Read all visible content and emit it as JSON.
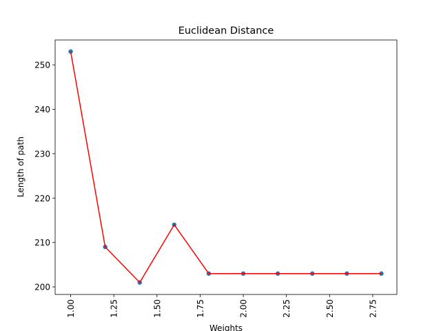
{
  "chart_data": {
    "type": "line",
    "title": "Euclidean Distance",
    "xlabel": "Weights",
    "ylabel": "Length of path",
    "x": [
      1.0,
      1.2,
      1.4,
      1.6,
      1.8,
      2.0,
      2.2,
      2.4,
      2.6,
      2.8
    ],
    "series": [
      {
        "values": [
          253,
          209,
          201,
          214,
          203,
          203,
          203,
          203,
          203,
          203
        ],
        "line_color": "#ff0000",
        "marker_color": "#1f77b4"
      }
    ],
    "xlim": [
      0.91,
      2.89
    ],
    "ylim": [
      198.3,
      255.6
    ],
    "xticks": [
      "1.00",
      "1.25",
      "1.50",
      "1.75",
      "2.00",
      "2.25",
      "2.50",
      "2.75"
    ],
    "yticks": [
      "200",
      "210",
      "220",
      "230",
      "240",
      "250"
    ],
    "grid": false,
    "legend": "none"
  }
}
